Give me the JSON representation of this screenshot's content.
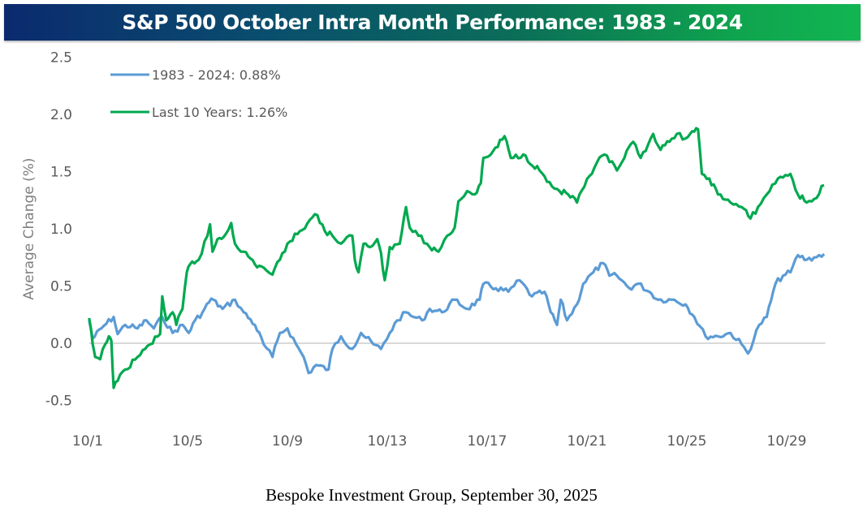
{
  "header": {
    "title": "S&P 500 October Intra Month Performance: 1983 - 2024"
  },
  "footer": {
    "source": "Bespoke Investment Group, September 30, 2025"
  },
  "chart_data": {
    "type": "line",
    "title": "S&P 500 October Intra Month Performance: 1983 - 2024",
    "xlabel": "",
    "ylabel": "Average Change (%)",
    "ylim": [
      -0.5,
      2.5
    ],
    "yticks": [
      -0.5,
      0.0,
      0.5,
      1.0,
      1.5,
      2.0,
      2.5
    ],
    "ytick_labels": [
      "-0.5",
      "0.0",
      "0.5",
      "1.0",
      "1.5",
      "2.0",
      "2.5"
    ],
    "xlim_days": [
      1,
      31
    ],
    "xticks_days": [
      1,
      5,
      9,
      13,
      17,
      21,
      25,
      29
    ],
    "xtick_labels": [
      "10/1",
      "10/5",
      "10/9",
      "10/13",
      "10/17",
      "10/21",
      "10/25",
      "10/29"
    ],
    "grid": false,
    "zero_line": true,
    "legend_position": "top-left",
    "x_unit": "day of October",
    "series": [
      {
        "name": "1983 - 2024: 0.88%",
        "color": "#5b9bd5",
        "points": [
          [
            1.06,
            0.2
          ],
          [
            1.2,
            0.04
          ],
          [
            1.55,
            0.13
          ],
          [
            2.04,
            0.23
          ],
          [
            2.2,
            0.08
          ],
          [
            2.5,
            0.16
          ],
          [
            3.0,
            0.13
          ],
          [
            3.35,
            0.2
          ],
          [
            3.65,
            0.13
          ],
          [
            3.99,
            0.23
          ],
          [
            4.4,
            0.09
          ],
          [
            4.8,
            0.16
          ],
          [
            5.05,
            0.09
          ],
          [
            5.3,
            0.2
          ],
          [
            5.6,
            0.27
          ],
          [
            5.95,
            0.39
          ],
          [
            6.4,
            0.3
          ],
          [
            6.9,
            0.38
          ],
          [
            7.25,
            0.27
          ],
          [
            7.7,
            0.16
          ],
          [
            8.05,
            -0.01
          ],
          [
            8.4,
            -0.12
          ],
          [
            8.7,
            0.09
          ],
          [
            9.0,
            0.13
          ],
          [
            9.35,
            -0.01
          ],
          [
            9.65,
            -0.12
          ],
          [
            9.85,
            -0.26
          ],
          [
            10.15,
            -0.19
          ],
          [
            10.65,
            -0.23
          ],
          [
            10.8,
            -0.05
          ],
          [
            11.15,
            0.06
          ],
          [
            11.6,
            -0.05
          ],
          [
            11.95,
            0.09
          ],
          [
            12.45,
            -0.01
          ],
          [
            12.75,
            -0.05
          ],
          [
            13.1,
            0.09
          ],
          [
            13.4,
            0.2
          ],
          [
            13.75,
            0.27
          ],
          [
            14.05,
            0.23
          ],
          [
            14.4,
            0.2
          ],
          [
            14.7,
            0.3
          ],
          [
            15.2,
            0.27
          ],
          [
            15.7,
            0.38
          ],
          [
            16.2,
            0.3
          ],
          [
            16.7,
            0.38
          ],
          [
            16.85,
            0.52
          ],
          [
            17.35,
            0.48
          ],
          [
            17.85,
            0.45
          ],
          [
            18.3,
            0.55
          ],
          [
            18.8,
            0.41
          ],
          [
            19.3,
            0.45
          ],
          [
            19.55,
            0.27
          ],
          [
            19.8,
            0.16
          ],
          [
            19.95,
            0.38
          ],
          [
            20.2,
            0.2
          ],
          [
            20.6,
            0.34
          ],
          [
            20.85,
            0.52
          ],
          [
            21.25,
            0.62
          ],
          [
            21.65,
            0.7
          ],
          [
            21.9,
            0.59
          ],
          [
            22.2,
            0.59
          ],
          [
            22.7,
            0.48
          ],
          [
            23.05,
            0.52
          ],
          [
            23.5,
            0.45
          ],
          [
            23.85,
            0.38
          ],
          [
            24.5,
            0.38
          ],
          [
            24.95,
            0.34
          ],
          [
            25.3,
            0.23
          ],
          [
            25.75,
            0.06
          ],
          [
            26.25,
            0.06
          ],
          [
            26.75,
            0.09
          ],
          [
            27.2,
            -0.01
          ],
          [
            27.45,
            -0.09
          ],
          [
            27.9,
            0.16
          ],
          [
            28.2,
            0.23
          ],
          [
            28.55,
            0.52
          ],
          [
            28.85,
            0.59
          ],
          [
            29.15,
            0.62
          ],
          [
            29.45,
            0.77
          ],
          [
            29.8,
            0.73
          ],
          [
            30.1,
            0.75
          ],
          [
            30.5,
            0.78
          ]
        ]
      },
      {
        "name": "Last 10 Years: 1.26%",
        "color": "#00a94f",
        "points": [
          [
            1.06,
            0.22
          ],
          [
            1.2,
            -0.01
          ],
          [
            1.3,
            -0.12
          ],
          [
            1.5,
            -0.14
          ],
          [
            1.7,
            -0.01
          ],
          [
            1.85,
            0.06
          ],
          [
            1.95,
            0.02
          ],
          [
            2.04,
            -0.39
          ],
          [
            2.2,
            -0.33
          ],
          [
            2.5,
            -0.23
          ],
          [
            3.0,
            -0.12
          ],
          [
            3.5,
            -0.01
          ],
          [
            3.9,
            0.08
          ],
          [
            3.99,
            0.41
          ],
          [
            4.15,
            0.2
          ],
          [
            4.4,
            0.27
          ],
          [
            4.55,
            0.16
          ],
          [
            4.8,
            0.3
          ],
          [
            4.97,
            0.62
          ],
          [
            5.1,
            0.69
          ],
          [
            5.45,
            0.73
          ],
          [
            5.8,
            0.94
          ],
          [
            5.9,
            1.04
          ],
          [
            6.0,
            0.8
          ],
          [
            6.2,
            0.91
          ],
          [
            6.45,
            0.93
          ],
          [
            6.75,
            1.05
          ],
          [
            6.9,
            0.87
          ],
          [
            7.25,
            0.8
          ],
          [
            7.7,
            0.69
          ],
          [
            8.05,
            0.66
          ],
          [
            8.4,
            0.6
          ],
          [
            8.7,
            0.73
          ],
          [
            9.0,
            0.87
          ],
          [
            9.5,
            0.98
          ],
          [
            10.0,
            1.1
          ],
          [
            10.2,
            1.12
          ],
          [
            10.5,
            0.98
          ],
          [
            10.8,
            0.94
          ],
          [
            11.15,
            0.87
          ],
          [
            11.6,
            0.94
          ],
          [
            11.7,
            0.73
          ],
          [
            11.85,
            0.62
          ],
          [
            12.05,
            0.87
          ],
          [
            12.3,
            0.84
          ],
          [
            12.6,
            0.91
          ],
          [
            12.75,
            0.79
          ],
          [
            12.9,
            0.55
          ],
          [
            13.1,
            0.84
          ],
          [
            13.5,
            0.87
          ],
          [
            13.75,
            1.19
          ],
          [
            13.9,
            1.01
          ],
          [
            14.25,
            0.94
          ],
          [
            14.7,
            0.84
          ],
          [
            15.05,
            0.8
          ],
          [
            15.4,
            0.94
          ],
          [
            15.7,
            1.01
          ],
          [
            15.85,
            1.24
          ],
          [
            16.2,
            1.33
          ],
          [
            16.5,
            1.3
          ],
          [
            16.75,
            1.4
          ],
          [
            16.85,
            1.62
          ],
          [
            17.15,
            1.65
          ],
          [
            17.7,
            1.81
          ],
          [
            17.95,
            1.62
          ],
          [
            18.45,
            1.65
          ],
          [
            19.1,
            1.51
          ],
          [
            19.6,
            1.37
          ],
          [
            19.9,
            1.33
          ],
          [
            20.25,
            1.3
          ],
          [
            20.6,
            1.23
          ],
          [
            20.9,
            1.37
          ],
          [
            21.4,
            1.58
          ],
          [
            21.7,
            1.65
          ],
          [
            22.2,
            1.51
          ],
          [
            22.5,
            1.62
          ],
          [
            22.85,
            1.76
          ],
          [
            23.15,
            1.62
          ],
          [
            23.65,
            1.83
          ],
          [
            23.95,
            1.69
          ],
          [
            24.3,
            1.76
          ],
          [
            24.6,
            1.83
          ],
          [
            24.95,
            1.79
          ],
          [
            25.3,
            1.85
          ],
          [
            25.45,
            1.87
          ],
          [
            25.6,
            1.48
          ],
          [
            25.9,
            1.44
          ],
          [
            26.25,
            1.3
          ],
          [
            26.75,
            1.23
          ],
          [
            27.2,
            1.19
          ],
          [
            27.55,
            1.09
          ],
          [
            27.85,
            1.19
          ],
          [
            28.2,
            1.3
          ],
          [
            28.65,
            1.44
          ],
          [
            29.15,
            1.48
          ],
          [
            29.45,
            1.3
          ],
          [
            29.8,
            1.23
          ],
          [
            30.1,
            1.26
          ],
          [
            30.5,
            1.38
          ]
        ]
      }
    ]
  }
}
